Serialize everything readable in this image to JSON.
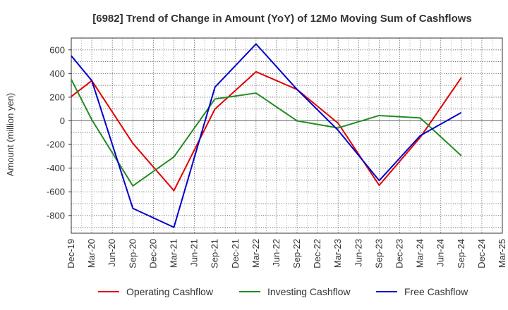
{
  "chart_data": {
    "type": "line",
    "title": "[6982]  Trend of Change in Amount (YoY) of 12Mo Moving Sum of Cashflows",
    "xlabel": "",
    "ylabel": "Amount (million yen)",
    "ylim": [
      -950,
      700
    ],
    "yticks": [
      600,
      400,
      200,
      0,
      -200,
      -400,
      -600,
      -800
    ],
    "categories": [
      "Dec-19",
      "Mar-20",
      "Jun-20",
      "Sep-20",
      "Dec-20",
      "Mar-21",
      "Jun-21",
      "Sep-21",
      "Dec-21",
      "Mar-22",
      "Jun-22",
      "Sep-22",
      "Dec-22",
      "Mar-23",
      "Jun-23",
      "Sep-23",
      "Dec-23",
      "Mar-24",
      "Jun-24",
      "Sep-24",
      "Dec-24",
      "Mar-25"
    ],
    "grid": true,
    "legend_position": "bottom",
    "series": [
      {
        "name": "Operating Cashflow",
        "color": "#e00000",
        "points": [
          [
            0,
            205
          ],
          [
            1,
            340
          ],
          [
            3,
            -190
          ],
          [
            5,
            -590
          ],
          [
            7,
            100
          ],
          [
            9,
            415
          ],
          [
            11,
            265
          ],
          [
            13,
            -20
          ],
          [
            15,
            -545
          ],
          [
            17,
            -140
          ],
          [
            19,
            365
          ]
        ]
      },
      {
        "name": "Investing Cashflow",
        "color": "#228b22",
        "points": [
          [
            0,
            350
          ],
          [
            1,
            10
          ],
          [
            3,
            -550
          ],
          [
            5,
            -305
          ],
          [
            7,
            185
          ],
          [
            9,
            235
          ],
          [
            11,
            0
          ],
          [
            13,
            -60
          ],
          [
            15,
            45
          ],
          [
            17,
            25
          ],
          [
            19,
            -295
          ]
        ]
      },
      {
        "name": "Free Cashflow",
        "color": "#0000cc",
        "points": [
          [
            0,
            550
          ],
          [
            1,
            340
          ],
          [
            3,
            -740
          ],
          [
            5,
            -900
          ],
          [
            7,
            285
          ],
          [
            9,
            650
          ],
          [
            11,
            265
          ],
          [
            13,
            -80
          ],
          [
            15,
            -505
          ],
          [
            17,
            -125
          ],
          [
            19,
            70
          ]
        ]
      }
    ]
  }
}
